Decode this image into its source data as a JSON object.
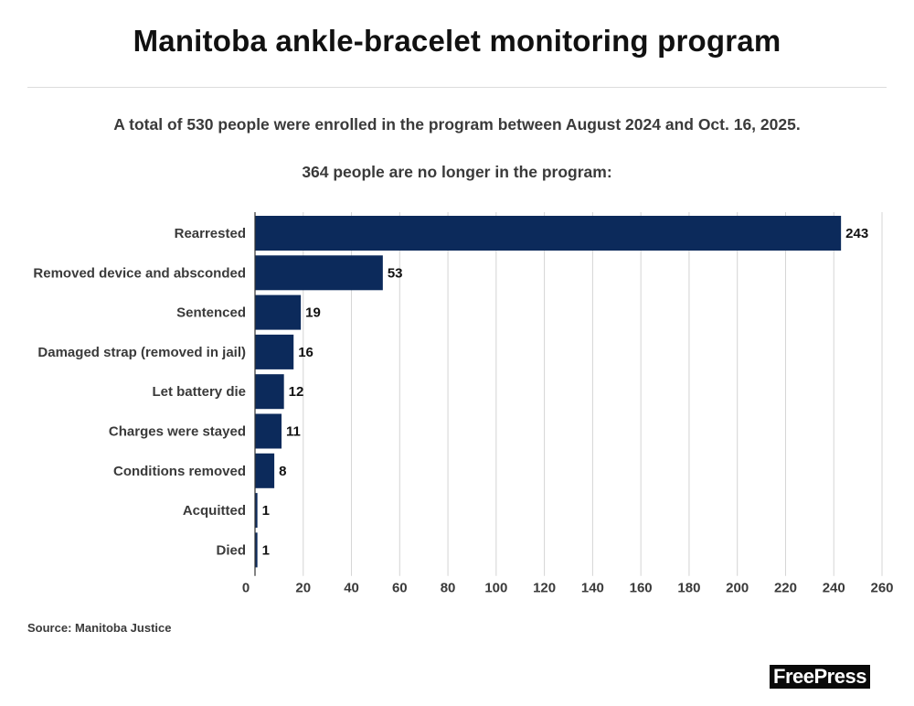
{
  "header": {
    "title": "Manitoba ankle-bracelet monitoring program",
    "subtitle_1": "A total of 530 people were enrolled in the program between August 2024 and Oct. 16, 2025.",
    "subtitle_2": "364 people are no longer in the program:"
  },
  "footer": {
    "source": "Source: Manitoba Justice",
    "logo_text": "FreePress"
  },
  "colors": {
    "bar": "#0c2a5b",
    "grid": "#d4d4d4",
    "axis": "#333333"
  },
  "chart_data": {
    "type": "bar",
    "orientation": "horizontal",
    "categories": [
      "Rearrested",
      "Removed device and absconded",
      "Sentenced",
      "Damaged strap (removed in jail)",
      "Let battery die",
      "Charges were stayed",
      "Conditions removed",
      "Acquitted",
      "Died"
    ],
    "values": [
      243,
      53,
      19,
      16,
      12,
      11,
      8,
      1,
      1
    ],
    "xlim": [
      0,
      260
    ],
    "xticks": [
      0,
      20,
      40,
      60,
      80,
      100,
      120,
      140,
      160,
      180,
      200,
      220,
      240,
      260
    ],
    "grid": true,
    "data_labels": true
  }
}
